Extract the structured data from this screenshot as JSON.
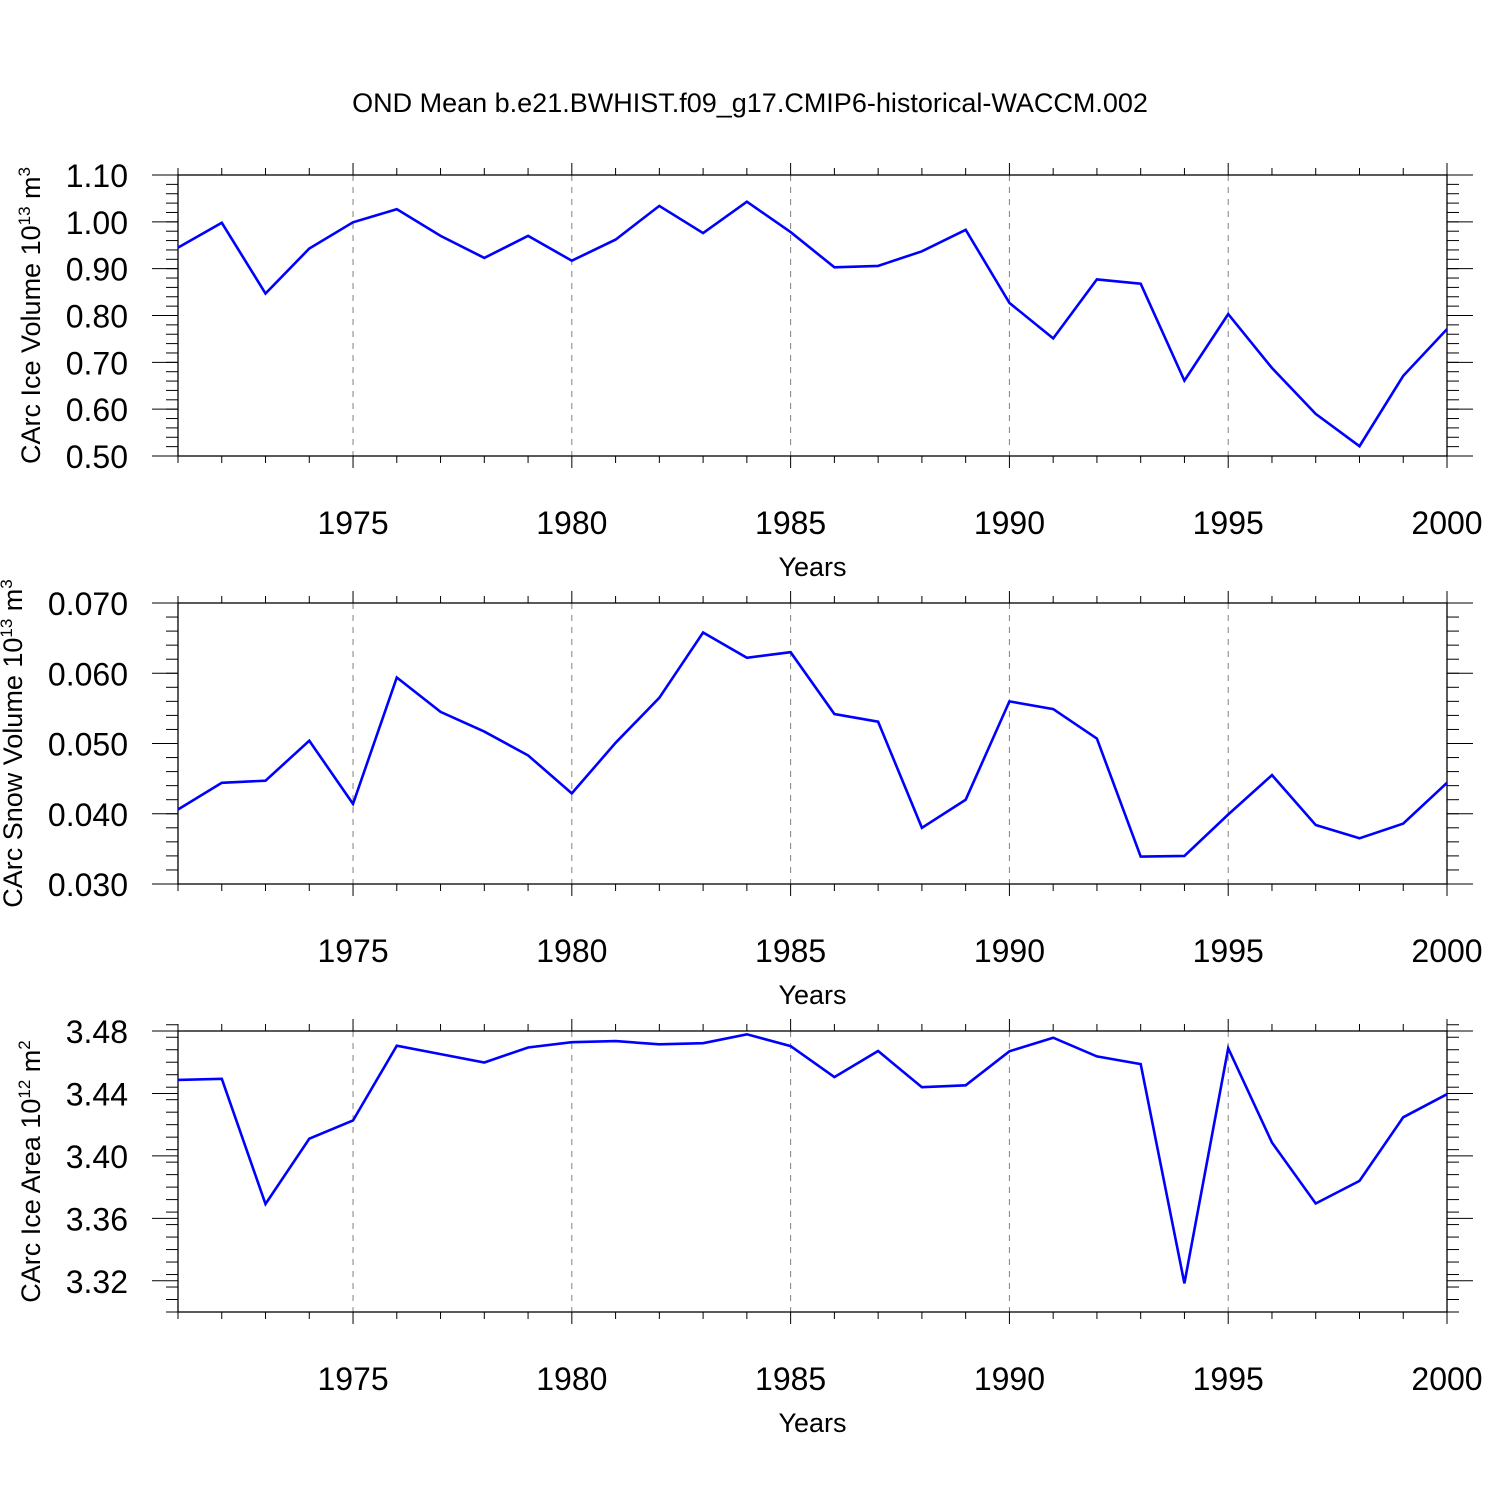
{
  "title": "OND Mean b.e21.BWHIST.f09_g17.CMIP6-historical-WACCM.002",
  "colors": {
    "series": "#0000ff",
    "axis": "#000000",
    "grid": "#808080"
  },
  "chart_data": [
    {
      "type": "line",
      "title": "OND Mean b.e21.BWHIST.f09_g17.CMIP6-historical-WACCM.002",
      "xlabel": "Years",
      "ylabel_main": "CArc Ice Volume 10",
      "ylabel_sup": "13",
      "ylabel_tail": " m",
      "ylabel_sup2": "3",
      "xlim": [
        1971,
        2000
      ],
      "ylim": [
        0.5,
        1.1
      ],
      "yticks": [
        0.5,
        0.6,
        0.7,
        0.8,
        0.9,
        1.0,
        1.1
      ],
      "ytick_labels": [
        "0.50",
        "0.60",
        "0.70",
        "0.80",
        "0.90",
        "1.00",
        "1.10"
      ],
      "yminor_step": 0.02,
      "xticks": [
        1975,
        1980,
        1985,
        1990,
        1995,
        2000
      ],
      "xtick_labels": [
        "1975",
        "1980",
        "1985",
        "1990",
        "1995",
        "2000"
      ],
      "grid": "vertical dashed at major x ticks",
      "x": [
        1971,
        1972,
        1973,
        1974,
        1975,
        1976,
        1977,
        1978,
        1979,
        1980,
        1981,
        1982,
        1983,
        1984,
        1985,
        1986,
        1987,
        1988,
        1989,
        1990,
        1991,
        1992,
        1993,
        1994,
        1995,
        1996,
        1997,
        1998,
        1999,
        2000
      ],
      "series": [
        {
          "name": "CArc Ice Volume",
          "values": [
            0.945,
            0.998,
            0.847,
            0.943,
            0.999,
            1.027,
            0.97,
            0.923,
            0.97,
            0.917,
            0.962,
            1.034,
            0.976,
            1.043,
            0.978,
            0.903,
            0.906,
            0.937,
            0.983,
            0.827,
            0.751,
            0.877,
            0.868,
            0.661,
            0.803,
            0.688,
            0.59,
            0.521,
            0.671,
            0.771
          ]
        }
      ]
    },
    {
      "type": "line",
      "title": "",
      "xlabel": "Years",
      "ylabel_main": "CArc Snow Volume 10",
      "ylabel_sup": "13",
      "ylabel_tail": " m",
      "ylabel_sup2": "3",
      "xlim": [
        1971,
        2000
      ],
      "ylim": [
        0.03,
        0.07
      ],
      "yticks": [
        0.03,
        0.04,
        0.05,
        0.06,
        0.07
      ],
      "ytick_labels": [
        "0.030",
        "0.040",
        "0.050",
        "0.060",
        "0.070"
      ],
      "yminor_step": 0.002,
      "xticks": [
        1975,
        1980,
        1985,
        1990,
        1995,
        2000
      ],
      "xtick_labels": [
        "1975",
        "1980",
        "1985",
        "1990",
        "1995",
        "2000"
      ],
      "grid": "vertical dashed at major x ticks",
      "x": [
        1971,
        1972,
        1973,
        1974,
        1975,
        1976,
        1977,
        1978,
        1979,
        1980,
        1981,
        1982,
        1983,
        1984,
        1985,
        1986,
        1987,
        1988,
        1989,
        1990,
        1991,
        1992,
        1993,
        1994,
        1995,
        1996,
        1997,
        1998,
        1999,
        2000
      ],
      "series": [
        {
          "name": "CArc Snow Volume",
          "values": [
            0.0406,
            0.0444,
            0.0447,
            0.0504,
            0.0414,
            0.0594,
            0.0545,
            0.0517,
            0.0483,
            0.0429,
            0.0501,
            0.0565,
            0.0658,
            0.0622,
            0.063,
            0.0542,
            0.0531,
            0.038,
            0.042,
            0.056,
            0.0549,
            0.0507,
            0.0339,
            0.034,
            0.0399,
            0.0455,
            0.0384,
            0.0365,
            0.0386,
            0.0444
          ]
        }
      ]
    },
    {
      "type": "line",
      "title": "",
      "xlabel": "Years",
      "ylabel_main": "CArc Ice Area 10",
      "ylabel_sup": "12",
      "ylabel_tail": " m",
      "ylabel_sup2": "2",
      "xlim": [
        1971,
        2000
      ],
      "ylim": [
        3.3,
        3.48
      ],
      "yticks": [
        3.32,
        3.36,
        3.4,
        3.44,
        3.48
      ],
      "ytick_labels": [
        "3.32",
        "3.36",
        "3.40",
        "3.44",
        "3.48"
      ],
      "yminor_step": 0.008,
      "xticks": [
        1975,
        1980,
        1985,
        1990,
        1995,
        2000
      ],
      "xtick_labels": [
        "1975",
        "1980",
        "1985",
        "1990",
        "1995",
        "2000"
      ],
      "grid": "vertical dashed at major x ticks",
      "x": [
        1971,
        1972,
        1973,
        1974,
        1975,
        1976,
        1977,
        1978,
        1979,
        1980,
        1981,
        1982,
        1983,
        1984,
        1985,
        1986,
        1987,
        1988,
        1989,
        1990,
        1991,
        1992,
        1993,
        1994,
        1995,
        1996,
        1997,
        1998,
        1999,
        2000
      ],
      "series": [
        {
          "name": "CArc Ice Area",
          "values": [
            3.4487,
            3.4494,
            3.3692,
            3.411,
            3.4227,
            3.4706,
            3.4652,
            3.4598,
            3.4694,
            3.4728,
            3.4735,
            3.4715,
            3.4722,
            3.4779,
            3.4703,
            3.4505,
            3.4672,
            3.444,
            3.4452,
            3.467,
            3.4757,
            3.4637,
            3.4588,
            3.3183,
            3.469,
            3.4085,
            3.3695,
            3.384,
            3.4247,
            3.4395
          ]
        }
      ]
    }
  ]
}
